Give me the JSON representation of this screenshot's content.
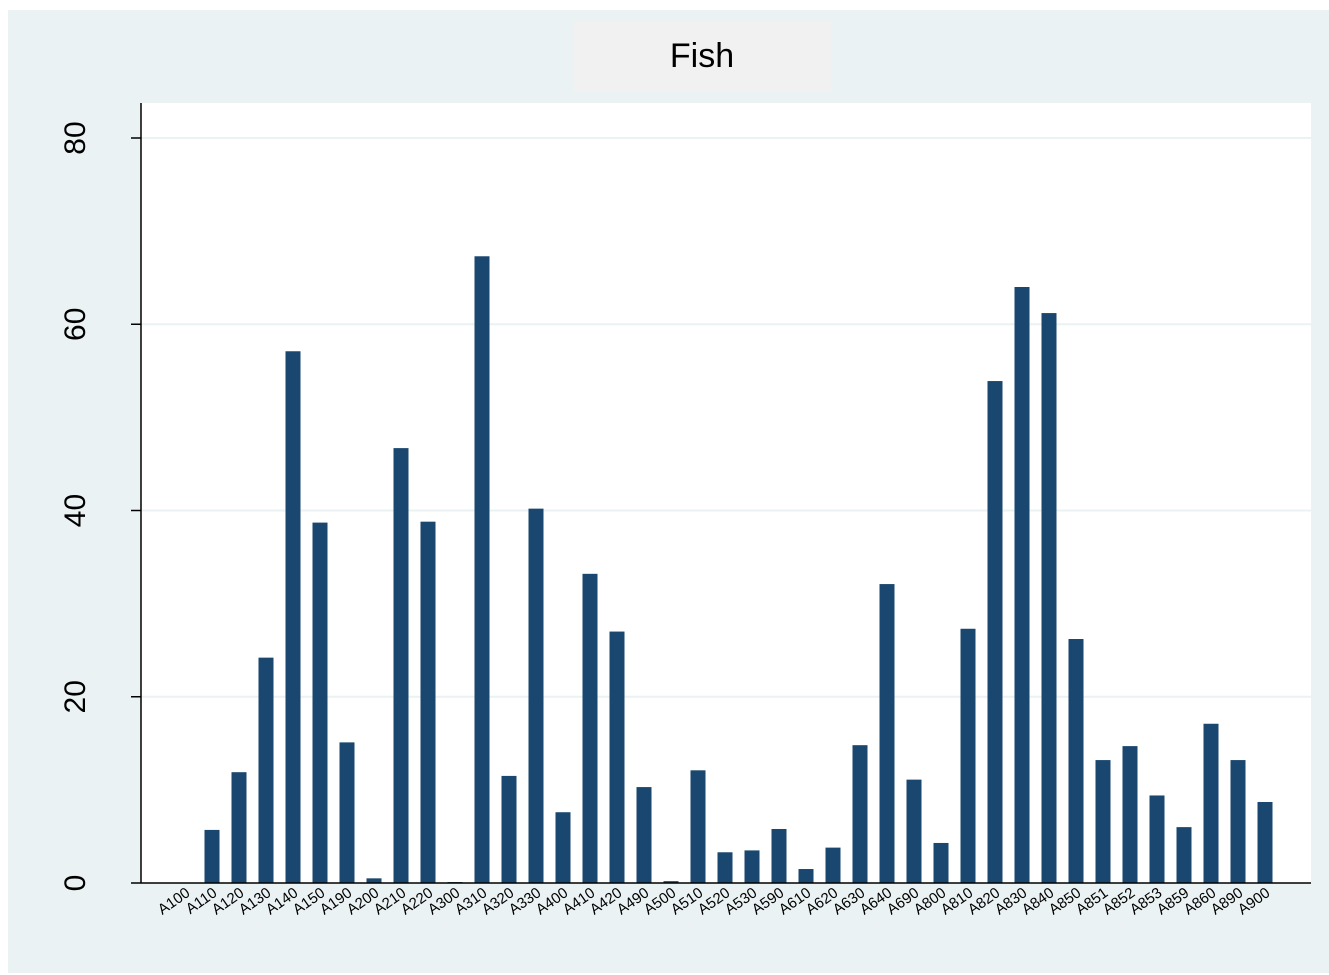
{
  "chart_data": {
    "type": "bar",
    "title": "Fish",
    "categories": [
      "A100",
      "A110",
      "A120",
      "A130",
      "A140",
      "A150",
      "A190",
      "A200",
      "A210",
      "A220",
      "A300",
      "A310",
      "A320",
      "A330",
      "A400",
      "A410",
      "A420",
      "A490",
      "A500",
      "A510",
      "A520",
      "A530",
      "A590",
      "A610",
      "A620",
      "A630",
      "A640",
      "A690",
      "A800",
      "A810",
      "A820",
      "A830",
      "A840",
      "A850",
      "A851",
      "A852",
      "A853",
      "A859",
      "A860",
      "A890",
      "A900"
    ],
    "values": [
      0,
      5.7,
      11.9,
      24.2,
      57.1,
      38.7,
      15.1,
      0.5,
      46.7,
      38.8,
      0.1,
      67.3,
      11.5,
      40.2,
      7.6,
      33.2,
      27.0,
      10.3,
      0.2,
      12.1,
      3.3,
      3.5,
      5.8,
      1.5,
      3.8,
      14.8,
      32.1,
      11.1,
      4.3,
      27.3,
      53.9,
      64.0,
      61.2,
      26.2,
      13.2,
      14.7,
      9.4,
      6.0,
      17.1,
      13.2,
      8.7
    ],
    "color": "#1a476f",
    "ylim": [
      0,
      80
    ],
    "yticks": [
      0,
      20,
      40,
      60,
      80
    ],
    "grid": true
  }
}
